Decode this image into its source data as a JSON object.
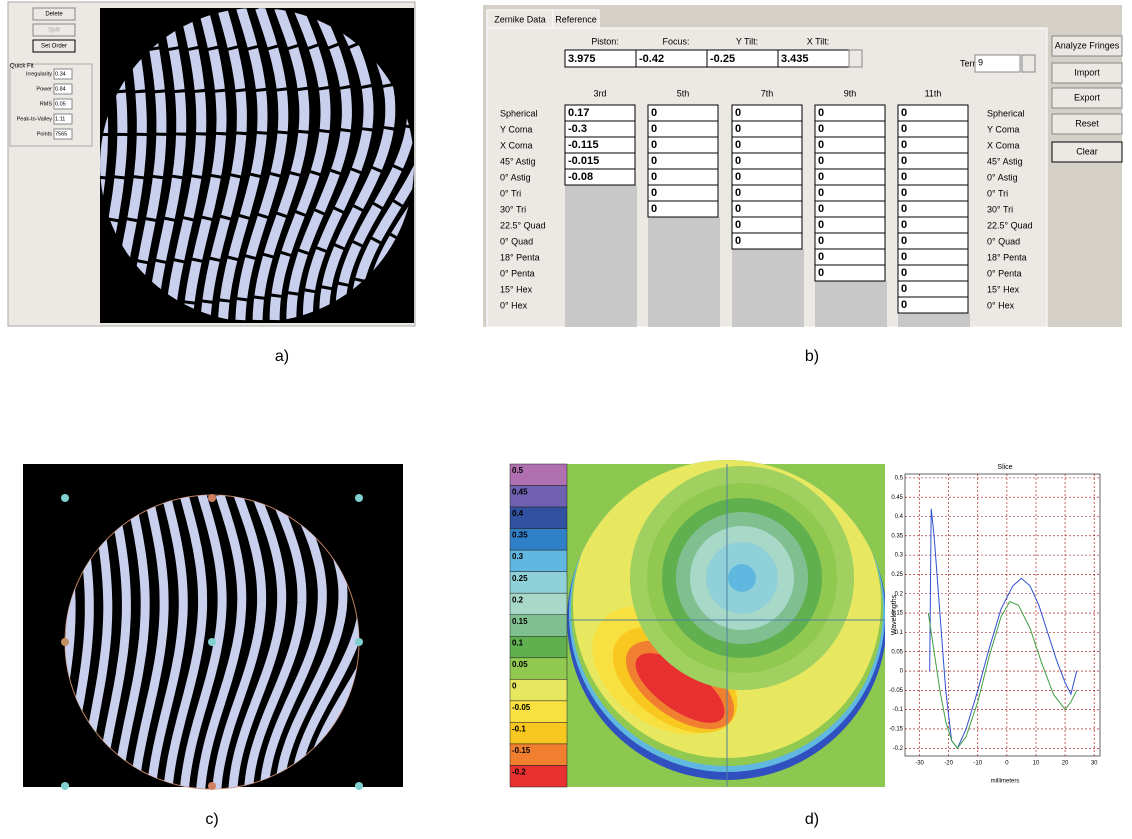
{
  "panel_a": {
    "buttons": [
      "Delete",
      "Split",
      "Set Order"
    ],
    "quick_fit": {
      "title": "Quick Fit",
      "fields": [
        {
          "label": "Irregularity",
          "value": "0.34"
        },
        {
          "label": "Power",
          "value": "0.84"
        },
        {
          "label": "RMS",
          "value": "0.05"
        },
        {
          "label": "Peak-to-Valley",
          "value": "1.11"
        },
        {
          "label": "Points",
          "value": "7565"
        }
      ]
    },
    "caption": "a)"
  },
  "panel_b": {
    "tabs": [
      "Zernike Data",
      "Reference"
    ],
    "header_fields": [
      {
        "label": "Piston:",
        "value": "3.975"
      },
      {
        "label": "Focus:",
        "value": "-0.42"
      },
      {
        "label": "Y Tilt:",
        "value": "-0.25"
      },
      {
        "label": "X Tilt:",
        "value": "3.435"
      }
    ],
    "terms": {
      "label": "Terms:",
      "value": "9"
    },
    "buttons": [
      "Analyze Fringes",
      "Import",
      "Export",
      "Reset",
      "Clear"
    ],
    "row_labels": [
      "Spherical",
      "Y Coma",
      "X Coma",
      "45° Astig",
      "0° Astig",
      "0° Tri",
      "30° Tri",
      "22.5° Quad",
      "0° Quad",
      "18° Penta",
      "0° Penta",
      "15° Hex",
      "0° Hex"
    ],
    "columns": [
      {
        "order": "3rd",
        "values": [
          "0.17",
          "-0.3",
          "-0.115",
          "-0.015",
          "-0.08"
        ]
      },
      {
        "order": "5th",
        "values": [
          "0",
          "0",
          "0",
          "0",
          "0",
          "0",
          "0"
        ]
      },
      {
        "order": "7th",
        "values": [
          "0",
          "0",
          "0",
          "0",
          "0",
          "0",
          "0",
          "0",
          "0"
        ]
      },
      {
        "order": "9th",
        "values": [
          "0",
          "0",
          "0",
          "0",
          "0",
          "0",
          "0",
          "0",
          "0",
          "0",
          "0"
        ]
      },
      {
        "order": "11th",
        "values": [
          "0",
          "0",
          "0",
          "0",
          "0",
          "0",
          "0",
          "0",
          "0",
          "0",
          "0",
          "0",
          "0"
        ]
      }
    ],
    "caption": "b)"
  },
  "panel_c": {
    "caption": "c)"
  },
  "panel_d": {
    "colorbar": {
      "levels": [
        "0.5",
        "0.45",
        "0.4",
        "0.35",
        "0.3",
        "0.25",
        "0.2",
        "0.15",
        "0.1",
        "0.05",
        "0",
        "-0.05",
        "-0.1",
        "-0.15",
        "-0.2"
      ],
      "colors": [
        "#b070b0",
        "#7060b0",
        "#3050a0",
        "#3080c8",
        "#60b8e0",
        "#90d0d8",
        "#a8d8c8",
        "#80c090",
        "#60b050",
        "#90c850",
        "#e8e860",
        "#f8e040",
        "#f8c820",
        "#f08030",
        "#e83030"
      ]
    },
    "caption": "d)"
  },
  "chart_data": {
    "type": "line",
    "title": "Slice",
    "x_label": "millimeters",
    "y_label": "Wavelengths",
    "xlim": [
      -35,
      32
    ],
    "ylim": [
      -0.22,
      0.51
    ],
    "xticks": [
      -30,
      -20,
      -10,
      0,
      10,
      20,
      30
    ],
    "yticks": [
      0.5,
      0.45,
      0.4,
      0.35,
      0.3,
      0.25,
      0.2,
      0.15,
      0.1,
      0.05,
      0,
      -0.05,
      -0.1,
      -0.15,
      -0.2
    ],
    "grid": true,
    "series": [
      {
        "name": null,
        "color": "#3050d0",
        "x": [
          -26.5,
          -26,
          -25,
          -23,
          -21,
          -19,
          -17,
          -14,
          -10,
          -6,
          -2,
          2,
          5,
          8,
          11,
          14,
          17,
          20,
          22,
          23,
          24
        ],
        "values": [
          0.0,
          0.42,
          0.35,
          0.15,
          -0.05,
          -0.18,
          -0.2,
          -0.15,
          -0.05,
          0.06,
          0.16,
          0.22,
          0.24,
          0.22,
          0.17,
          0.1,
          0.03,
          -0.03,
          -0.06,
          -0.03,
          0.0
        ]
      },
      {
        "name": null,
        "color": "#40a040",
        "x": [
          -27,
          -25,
          -23,
          -21,
          -19,
          -17,
          -14,
          -10,
          -6,
          -2,
          1,
          4,
          8,
          12,
          16,
          20,
          22,
          24
        ],
        "values": [
          0.15,
          0.05,
          -0.05,
          -0.13,
          -0.18,
          -0.2,
          -0.17,
          -0.08,
          0.04,
          0.14,
          0.18,
          0.17,
          0.11,
          0.02,
          -0.06,
          -0.1,
          -0.08,
          -0.05
        ]
      }
    ]
  }
}
